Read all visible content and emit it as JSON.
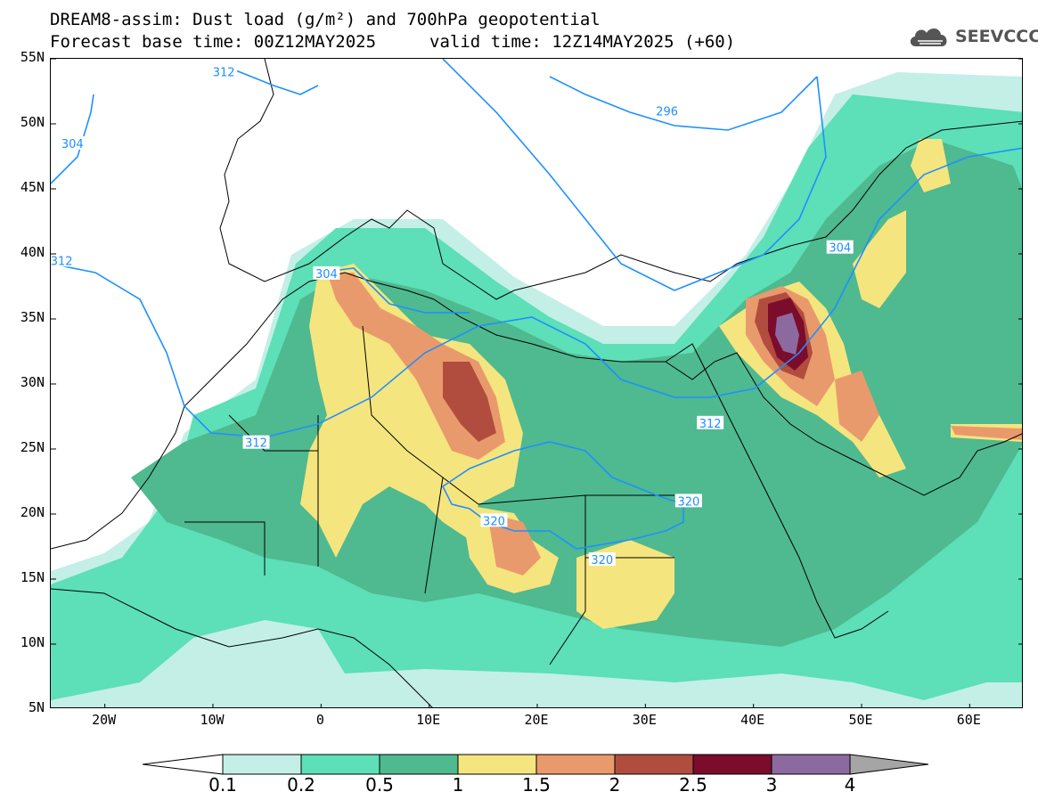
{
  "header": {
    "title_line1": "DREAM8-assim: Dust load (g/m²) and 700hPa geopotential",
    "title_line2": "Forecast base time: 00Z12MAY2025",
    "valid_time": "valid time: 12Z14MAY2025 (+60)",
    "logo_text": "SEEVCCC",
    "logo_icon": "cloud-icon"
  },
  "axes": {
    "lat_labels": [
      "55N",
      "50N",
      "45N",
      "40N",
      "35N",
      "30N",
      "25N",
      "20N",
      "15N",
      "10N",
      "5N"
    ],
    "lon_labels": [
      "20W",
      "10W",
      "0",
      "10E",
      "20E",
      "30E",
      "40E",
      "50E",
      "60E"
    ]
  },
  "colorbar": {
    "levels": [
      "0.1",
      "0.2",
      "0.5",
      "1",
      "1.5",
      "2",
      "2.5",
      "3",
      "4"
    ],
    "colors": [
      "#ffffff",
      "#c3efe6",
      "#5ddfb7",
      "#4fb98f",
      "#f5e57e",
      "#e99a6c",
      "#b14d3e",
      "#7b0c2c",
      "#8c6aa0",
      "#a5a5a5"
    ]
  },
  "contours": {
    "unit": "700hPa geopotential (dam)",
    "labels": [
      {
        "text": "312",
        "lon": -9,
        "lat": 54
      },
      {
        "text": "304",
        "lon": -23,
        "lat": 48.5
      },
      {
        "text": "312",
        "lon": -24,
        "lat": 39.5
      },
      {
        "text": "304",
        "lon": 0.5,
        "lat": 38.5
      },
      {
        "text": "312",
        "lon": -6,
        "lat": 25.5
      },
      {
        "text": "296",
        "lon": 32,
        "lat": 51
      },
      {
        "text": "304",
        "lon": 48,
        "lat": 40.5
      },
      {
        "text": "312",
        "lon": 36,
        "lat": 27
      },
      {
        "text": "320",
        "lon": 34,
        "lat": 21
      },
      {
        "text": "320",
        "lon": 16,
        "lat": 19.5
      },
      {
        "text": "320",
        "lon": 26,
        "lat": 16.5
      }
    ]
  }
}
